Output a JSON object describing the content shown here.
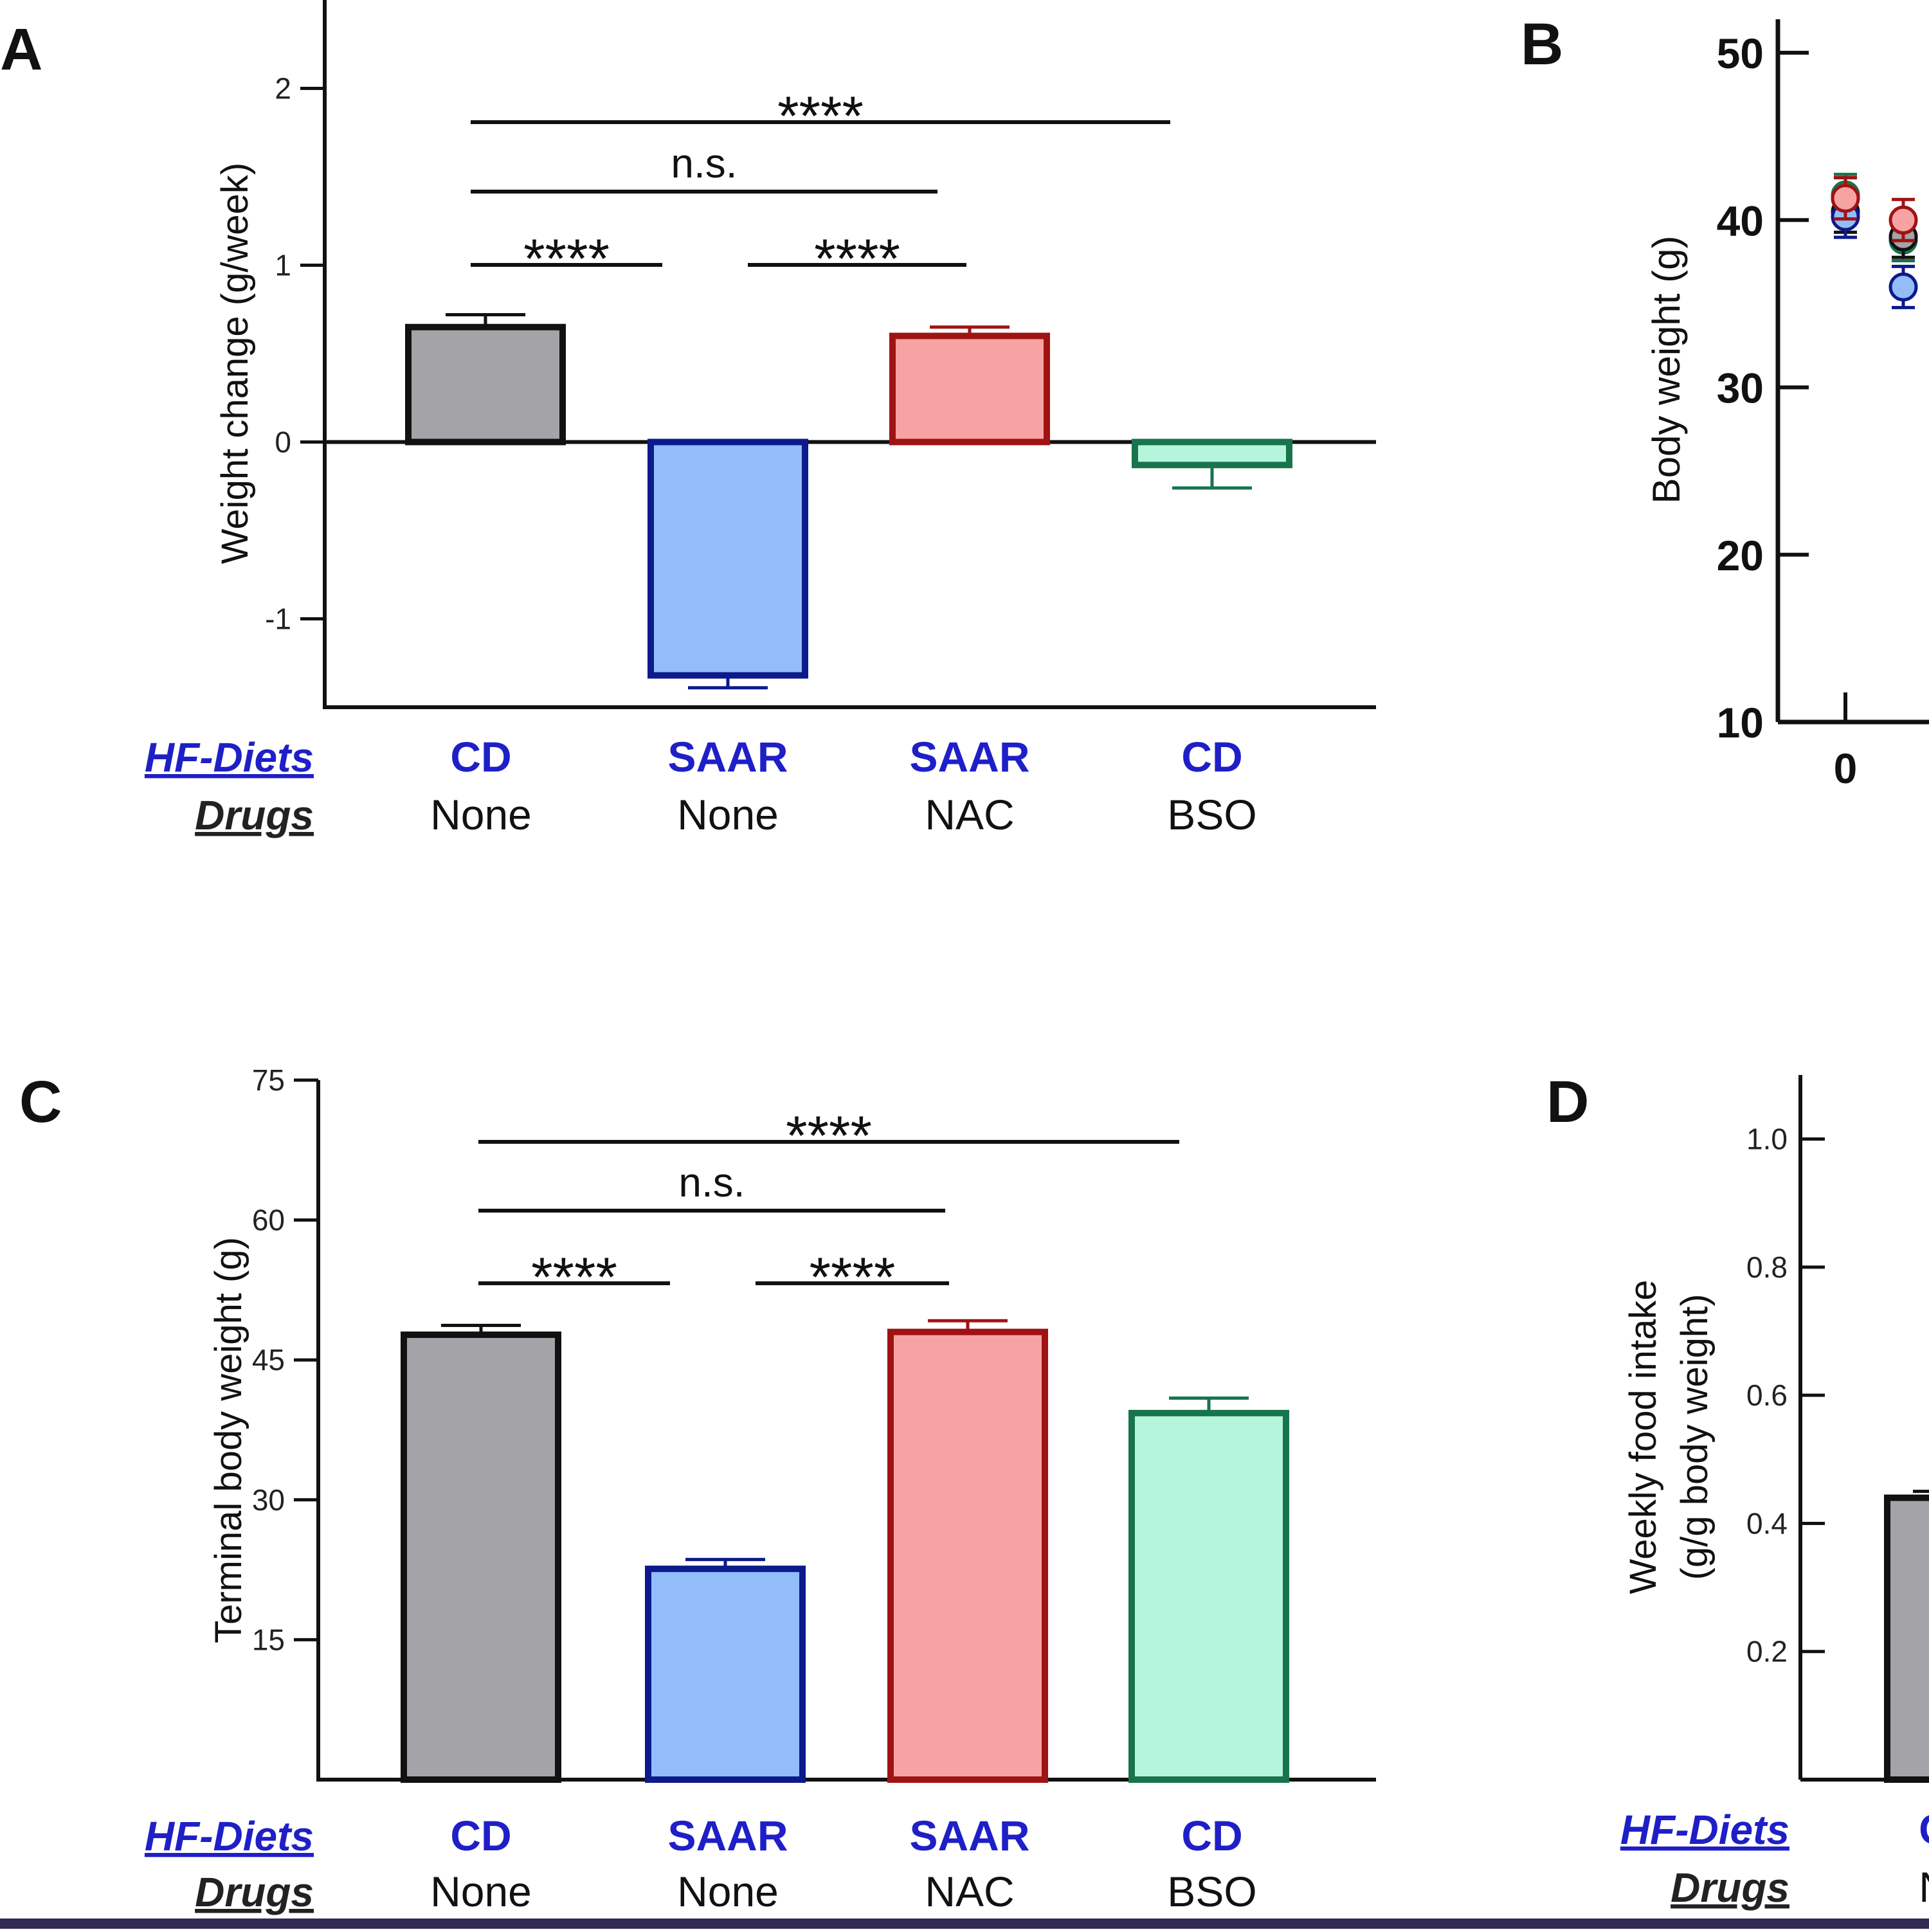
{
  "colors": {
    "CD_None": {
      "fill": "#a3a3a8",
      "stroke": "#111111"
    },
    "SAAR_None": {
      "fill": "#93bdf8",
      "stroke": "#0c1a8c"
    },
    "SAAR_NAC": {
      "fill": "#f8a3a3",
      "stroke": "#a01313"
    },
    "CD_BSO": {
      "fill": "#b5f5dc",
      "stroke": "#17744c"
    },
    "diet_label": "#1f1fc8"
  },
  "row_headers": {
    "diets": "HF-Diets",
    "drugs": "Drugs"
  },
  "groups": [
    {
      "diet": "CD",
      "drug": "None"
    },
    {
      "diet": "SAAR",
      "drug": "None"
    },
    {
      "diet": "SAAR",
      "drug": "NAC"
    },
    {
      "diet": "CD",
      "drug": "BSO"
    }
  ],
  "chart_data": [
    {
      "panel": "A",
      "type": "bar",
      "ylabel": "Weight change (g/week)",
      "ylim": [
        -1.5,
        2.5
      ],
      "yticks": [
        -1,
        0,
        1,
        2
      ],
      "tick_labels": [
        "-1",
        "0",
        "1",
        "2"
      ],
      "values": [
        0.65,
        -1.32,
        0.6,
        -0.13
      ],
      "errors": [
        0.07,
        0.07,
        0.05,
        0.13
      ],
      "significance": [
        {
          "from": 0,
          "to": 3,
          "label": "****",
          "level": 3
        },
        {
          "from": 0,
          "to": 2,
          "label": "n.s.",
          "level": 2
        },
        {
          "from": 0,
          "to": 1,
          "label": "****",
          "level": 1
        },
        {
          "from": 1,
          "to": 2,
          "label": "****",
          "level": 1
        }
      ]
    },
    {
      "panel": "B",
      "type": "scatter",
      "ylabel": "Body weight (g)",
      "ylim": [
        10,
        52
      ],
      "yticks": [
        10,
        20,
        30,
        40,
        50
      ],
      "tick_labels": [
        "10",
        "20",
        "30",
        "40",
        "50"
      ],
      "xticks": [
        0
      ],
      "xtick_labels": [
        "0"
      ],
      "series": [
        {
          "name": "CD_None",
          "x": [
            0,
            0.9
          ],
          "y": [
            40.5,
            39.0
          ]
        },
        {
          "name": "SAAR_None",
          "x": [
            0,
            0.9
          ],
          "y": [
            40.2,
            36.0
          ]
        },
        {
          "name": "SAAR_NAC",
          "x": [
            0,
            0.9
          ],
          "y": [
            41.3,
            40.0
          ]
        },
        {
          "name": "CD_BSO",
          "x": [
            0,
            0.9
          ],
          "y": [
            41.5,
            38.8
          ]
        }
      ]
    },
    {
      "panel": "C",
      "type": "bar",
      "ylabel": "Terminal body weight (g)",
      "ylim": [
        0,
        75
      ],
      "yticks": [
        15,
        30,
        45,
        60,
        75
      ],
      "tick_labels": [
        "15",
        "30",
        "45",
        "60",
        "75"
      ],
      "values": [
        47.7,
        22.6,
        48.0,
        39.3
      ],
      "errors": [
        1.0,
        1.0,
        1.2,
        1.6
      ],
      "significance": [
        {
          "from": 0,
          "to": 3,
          "label": "****",
          "level": 3
        },
        {
          "from": 0,
          "to": 2,
          "label": "n.s.",
          "level": 2
        },
        {
          "from": 0,
          "to": 1,
          "label": "****",
          "level": 1
        },
        {
          "from": 1,
          "to": 2,
          "label": "****",
          "level": 1
        }
      ]
    },
    {
      "panel": "D",
      "type": "bar",
      "ylabel": [
        "Weekly food intake",
        "(g/g body weight)"
      ],
      "ylim": [
        0,
        1.1
      ],
      "yticks": [
        0.2,
        0.4,
        0.6,
        0.8,
        1.0
      ],
      "tick_labels": [
        "0.2",
        "0.4",
        "0.6",
        "0.8",
        "1.0"
      ],
      "values": [
        0.44
      ],
      "errors": [
        0.01
      ],
      "group_labels_visible": [
        {
          "diet": "C",
          "drug": "N"
        }
      ]
    }
  ]
}
